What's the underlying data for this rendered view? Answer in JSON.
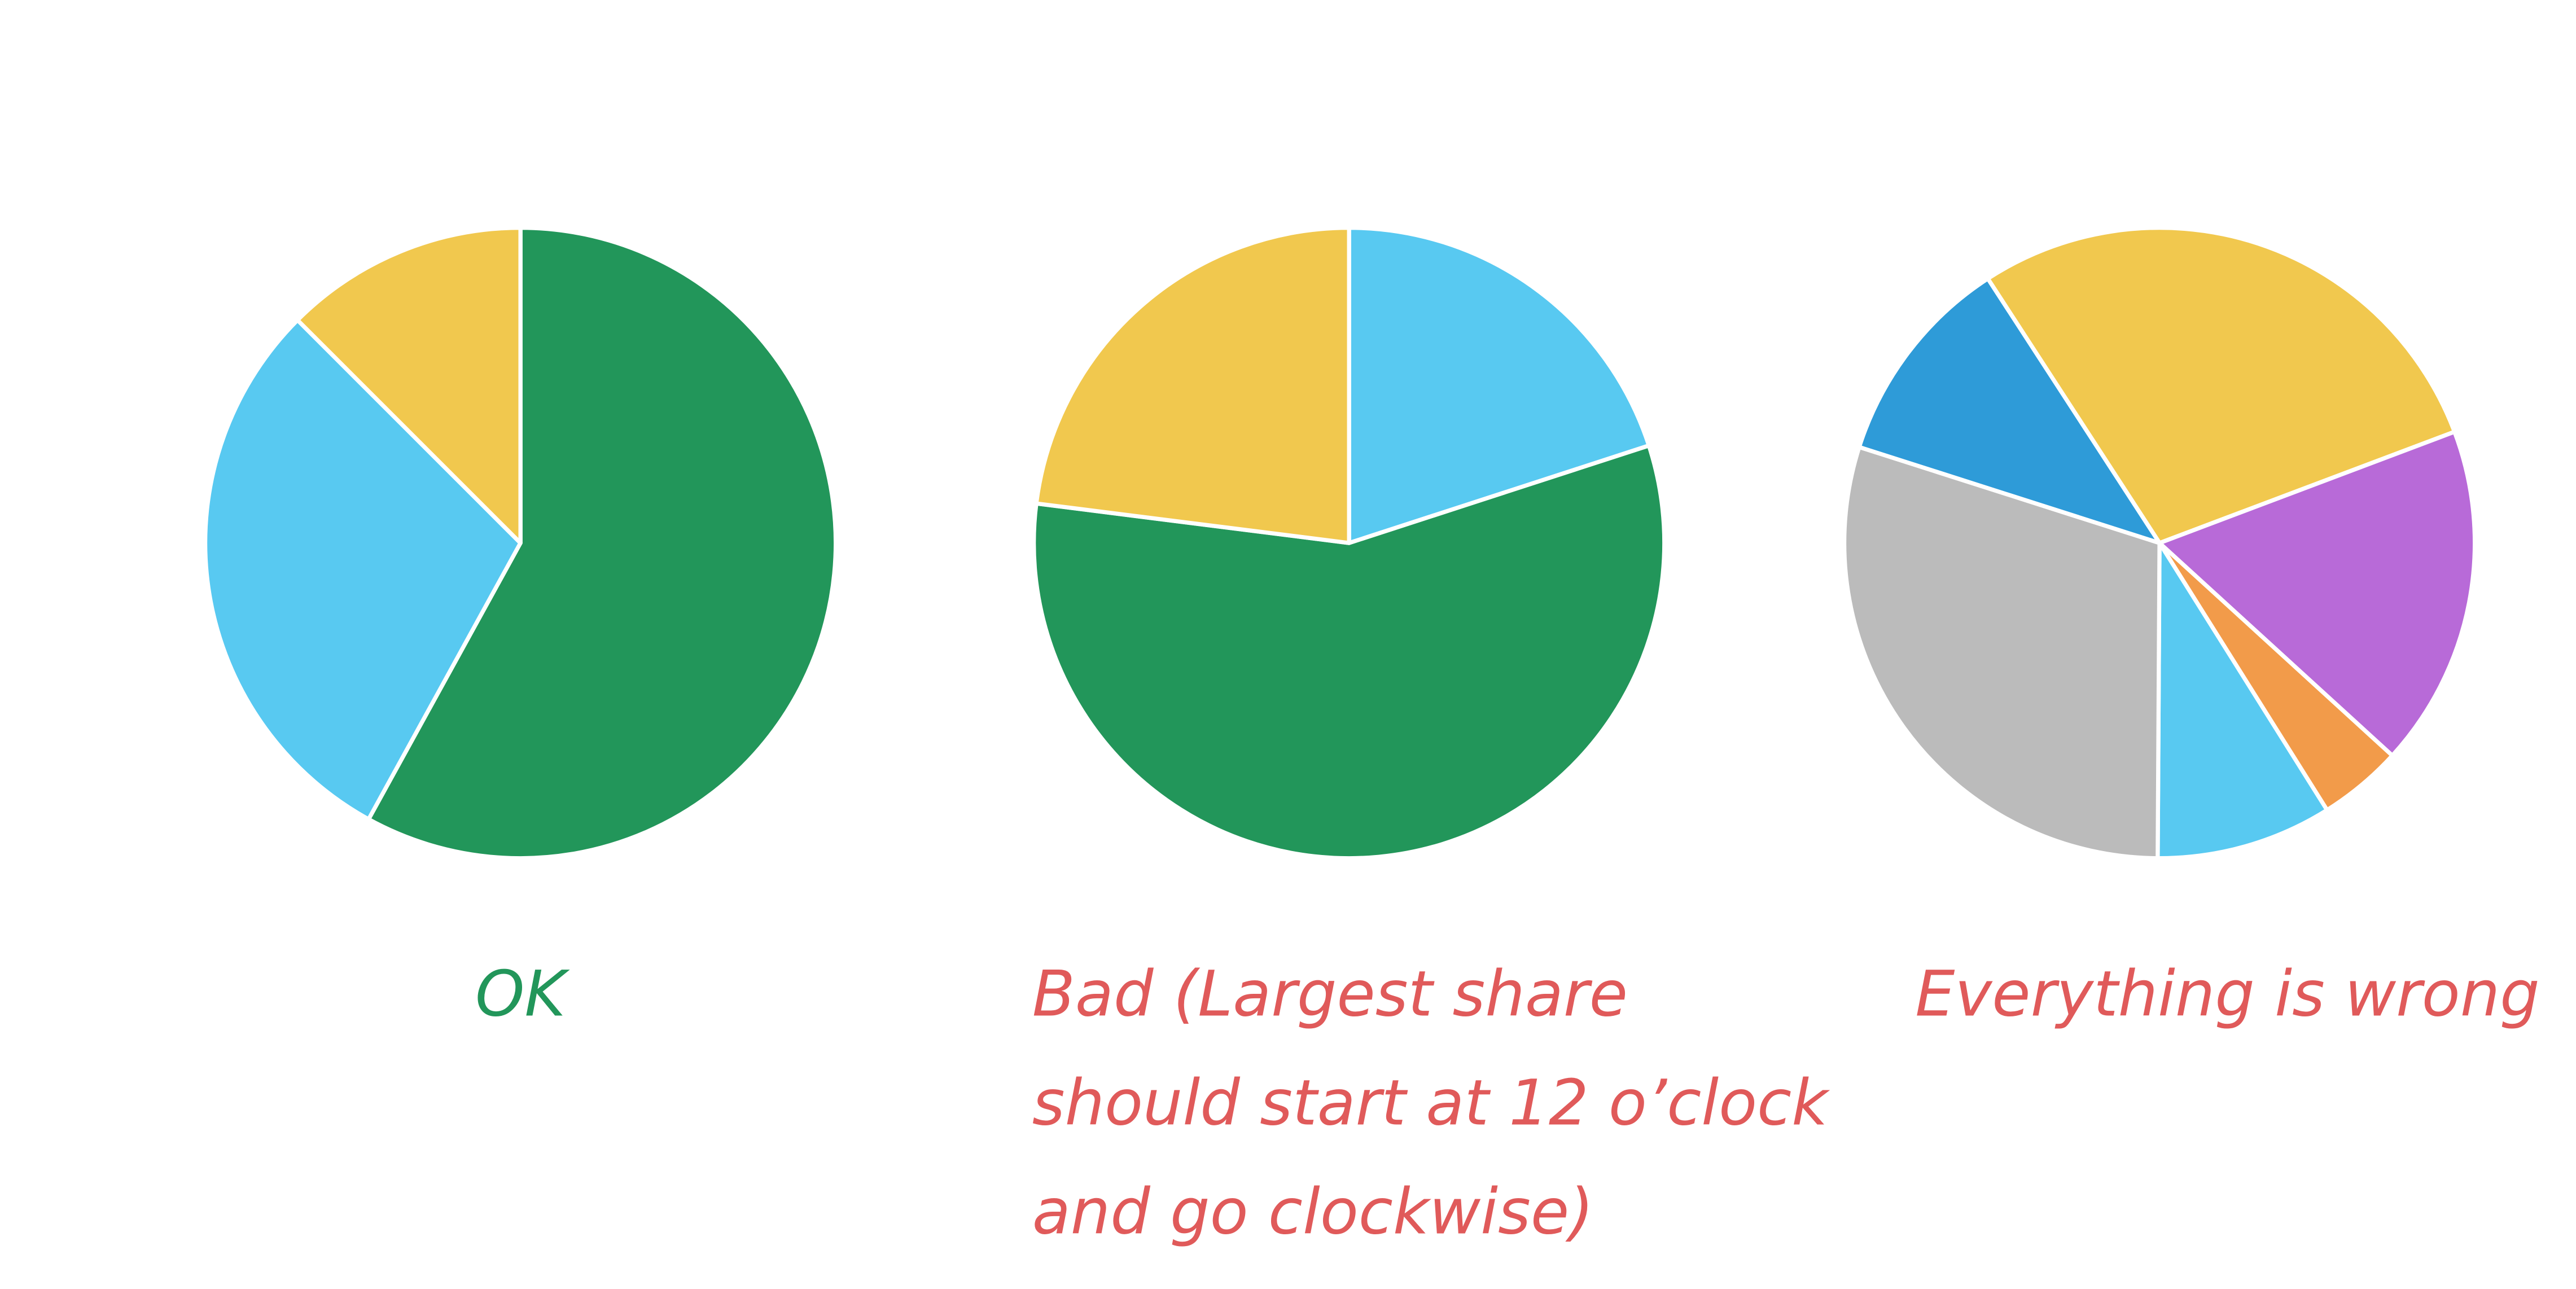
{
  "chart_data": [
    {
      "type": "pie",
      "values": [
        58,
        29.5,
        12.5
      ],
      "colors": [
        "#22965a",
        "#58c9f1",
        "#f1c84e"
      ],
      "start_angle": 0,
      "direction": "clockwise",
      "caption": [
        "OK"
      ],
      "caption_color": "#22965a"
    },
    {
      "type": "pie",
      "values": [
        20,
        57,
        23
      ],
      "colors": [
        "#58c9f1",
        "#22965a",
        "#f1c84e"
      ],
      "start_angle": 0,
      "direction": "clockwise",
      "caption": [
        "Bad (Largest share",
        "should start at 12 o’clock",
        "and go clockwise)"
      ],
      "caption_color": "#e05a5a"
    },
    {
      "type": "pie",
      "values": [
        28.4,
        17.5,
        4.3,
        9,
        29.8,
        10.9
      ],
      "colors": [
        "#f1c84e",
        "#b86ad8",
        "#f29b4a",
        "#58c9f1",
        "#bbbbbb",
        "#2e9bd8"
      ],
      "start_angle": 327,
      "direction": "clockwise",
      "caption": [
        "Everything is wrong"
      ],
      "caption_color": "#e05a5a"
    }
  ]
}
